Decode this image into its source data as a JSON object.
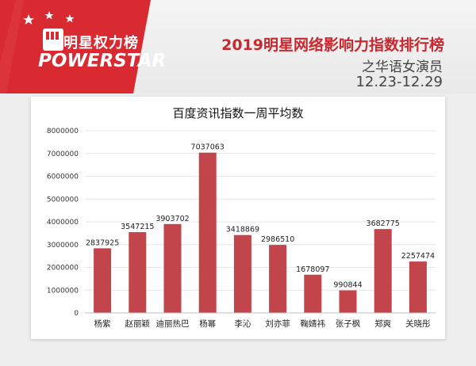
{
  "header": {
    "logo_cn": "明星权力榜",
    "logo_en": "POWERSTAR",
    "title": "2019明星网络影响力指数排行榜",
    "subtitle": "之华语女演员",
    "date_range": "12.23-12.29"
  },
  "colors": {
    "brand_red": "#c8282e",
    "bar_color": "#c1454a"
  },
  "chart_data": {
    "type": "bar",
    "title": "百度资讯指数一周平均数",
    "categories": [
      "杨紫",
      "赵丽颖",
      "迪丽热巴",
      "杨幂",
      "李沁",
      "刘亦菲",
      "鞠婧祎",
      "张子枫",
      "郑爽",
      "关晓彤"
    ],
    "values": [
      2837925,
      3547215,
      3903702,
      7037063,
      3418869,
      2986510,
      1678097,
      990844,
      3682775,
      2257474
    ],
    "data_labels": [
      "2837925",
      "3547215",
      "3903702",
      "7037063",
      "3418869",
      "2986510",
      "1678097",
      "990844",
      "3682775",
      "2257474"
    ],
    "y_ticks": [
      "0",
      "1000000",
      "2000000",
      "3000000",
      "4000000",
      "5000000",
      "6000000",
      "7000000",
      "8000000"
    ],
    "ylim": [
      0,
      8000000
    ],
    "grid": true,
    "legend": "none"
  }
}
